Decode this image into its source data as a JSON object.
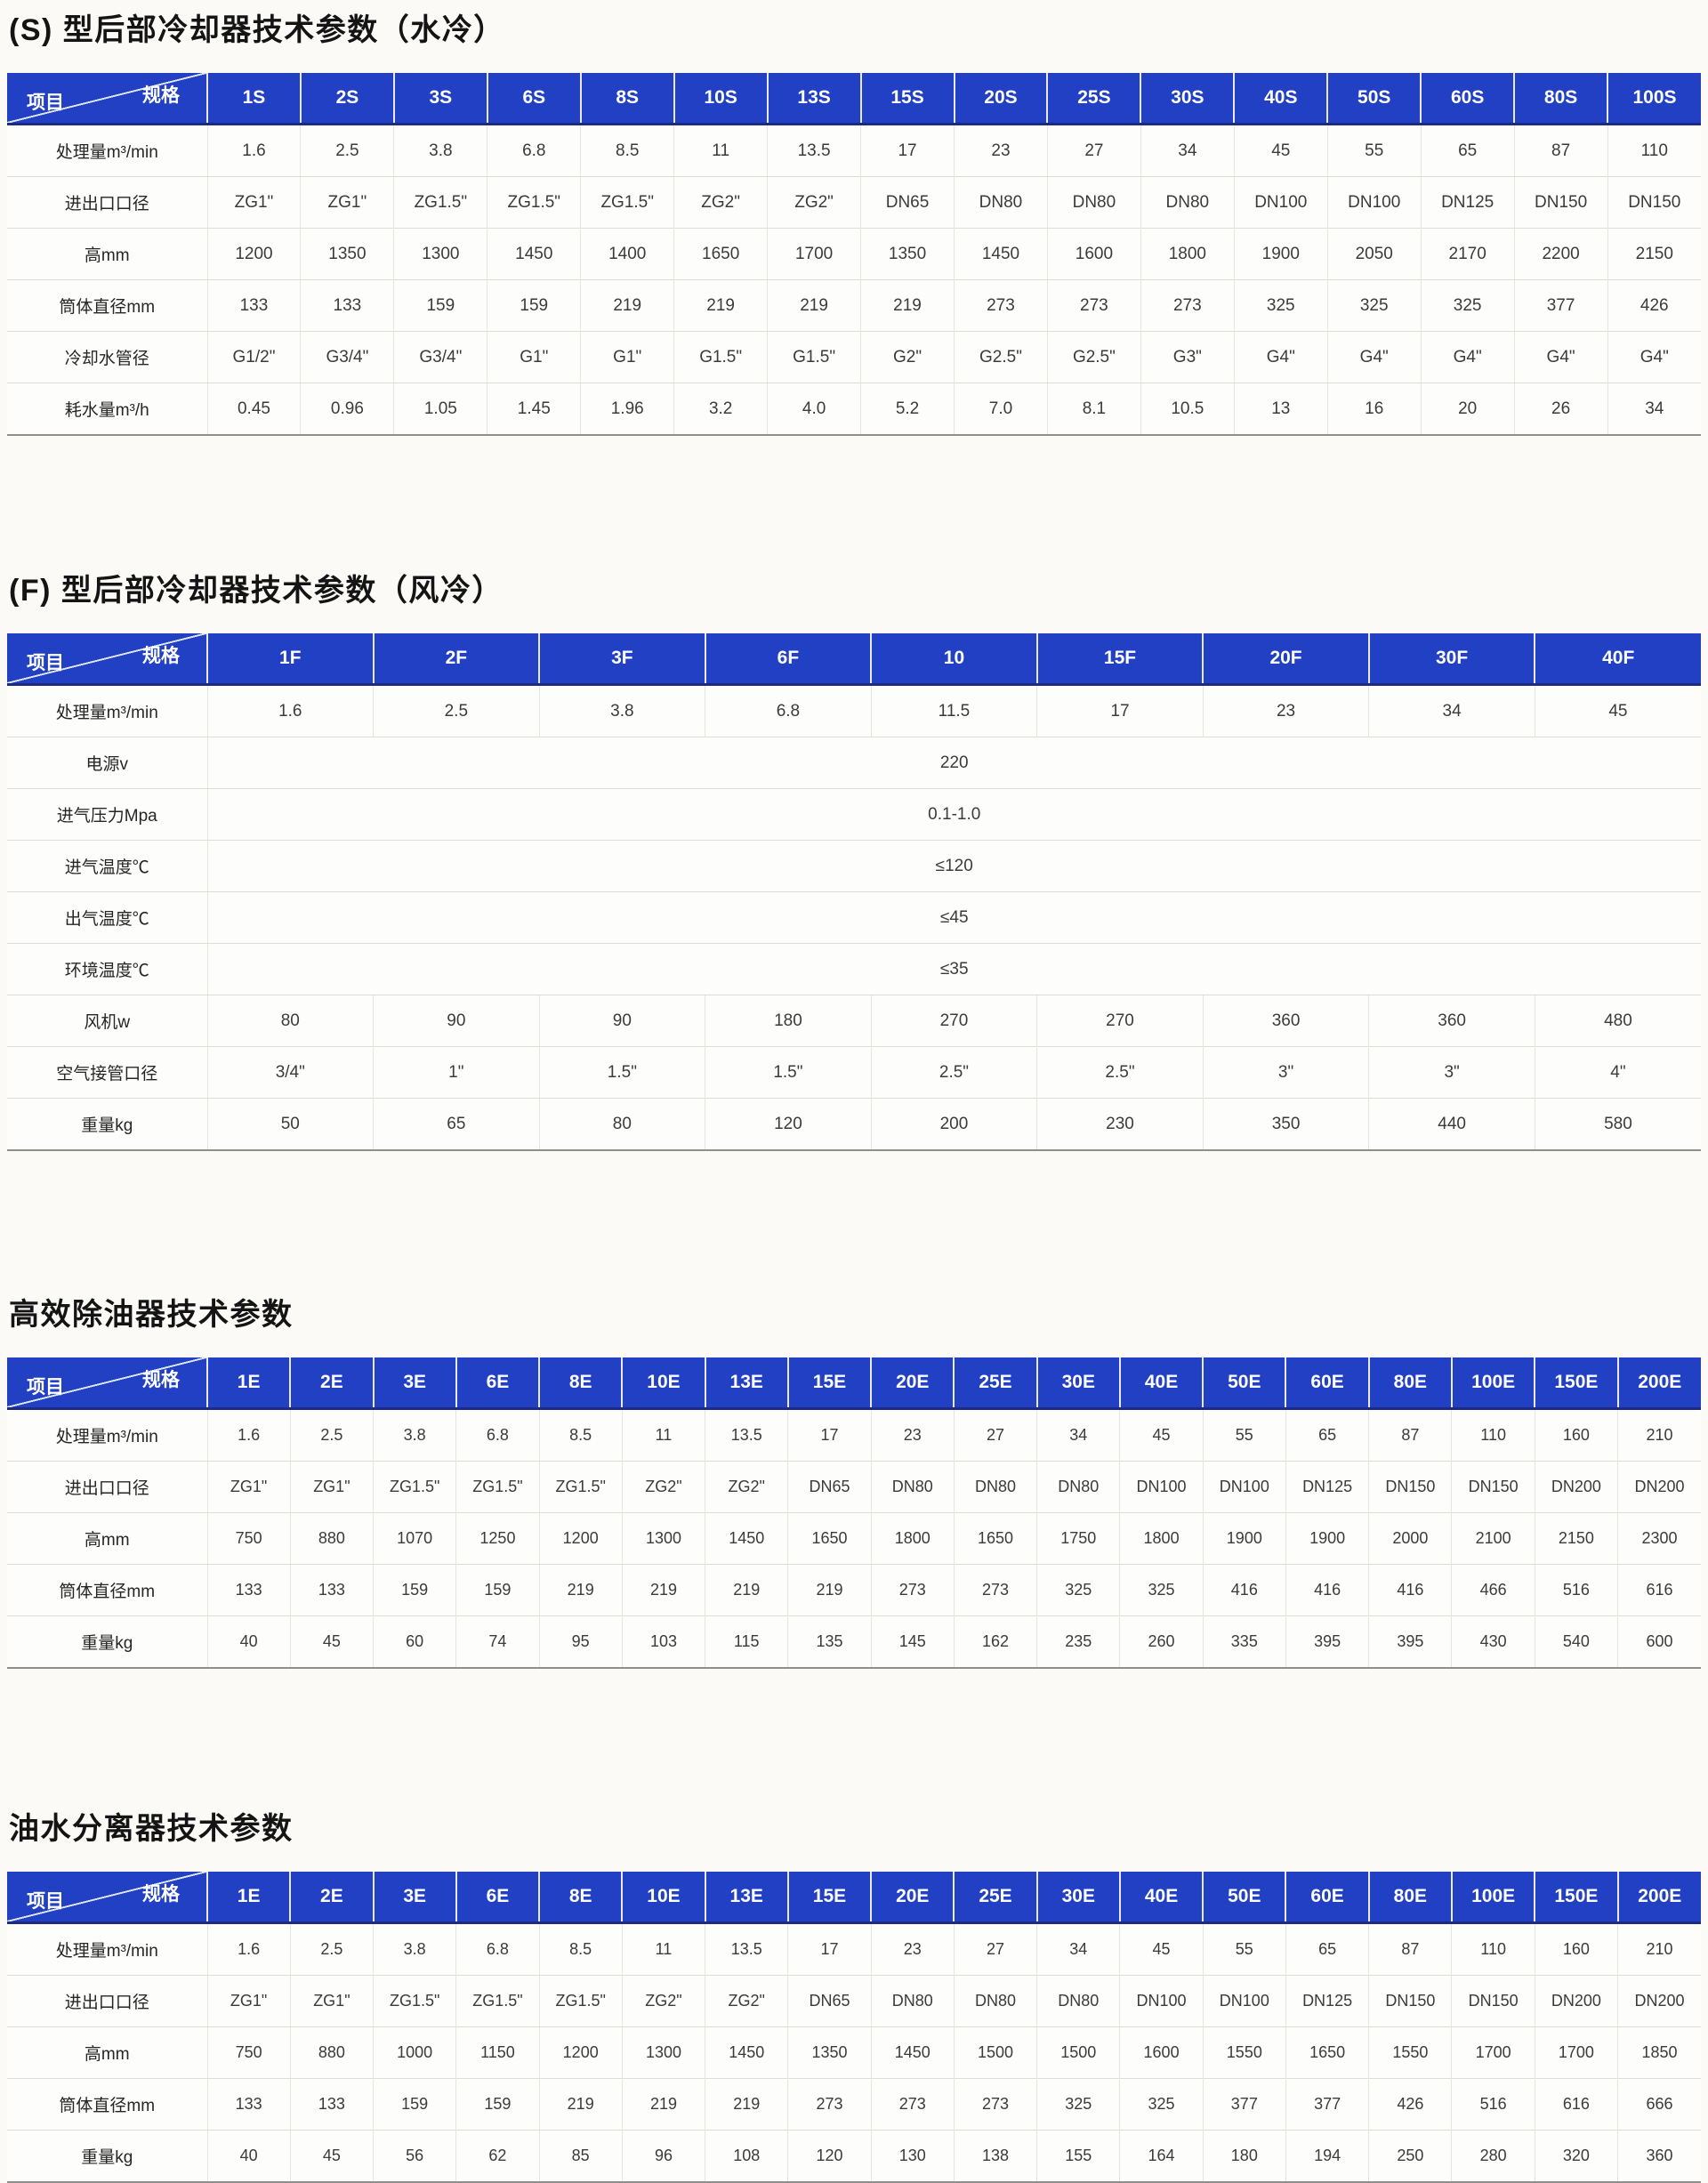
{
  "tables": [
    {
      "id": "s-water-cooled",
      "title": "(S) 型后部冷却器技术参数（水冷）",
      "corner": {
        "top": "规格",
        "bottom": "项目"
      },
      "header_bg": "#2140c4",
      "header_text_color": "#ffffff",
      "columns": [
        "1S",
        "2S",
        "3S",
        "6S",
        "8S",
        "10S",
        "13S",
        "15S",
        "20S",
        "25S",
        "30S",
        "40S",
        "50S",
        "60S",
        "80S",
        "100S"
      ],
      "rows": [
        {
          "label": "处理量m³/min",
          "values": [
            "1.6",
            "2.5",
            "3.8",
            "6.8",
            "8.5",
            "11",
            "13.5",
            "17",
            "23",
            "27",
            "34",
            "45",
            "55",
            "65",
            "87",
            "110"
          ]
        },
        {
          "label": "进出口口径",
          "values": [
            "ZG1\"",
            "ZG1\"",
            "ZG1.5\"",
            "ZG1.5\"",
            "ZG1.5\"",
            "ZG2\"",
            "ZG2\"",
            "DN65",
            "DN80",
            "DN80",
            "DN80",
            "DN100",
            "DN100",
            "DN125",
            "DN150",
            "DN150"
          ]
        },
        {
          "label": "高mm",
          "values": [
            "1200",
            "1350",
            "1300",
            "1450",
            "1400",
            "1650",
            "1700",
            "1350",
            "1450",
            "1600",
            "1800",
            "1900",
            "2050",
            "2170",
            "2200",
            "2150"
          ]
        },
        {
          "label": "筒体直径mm",
          "values": [
            "133",
            "133",
            "159",
            "159",
            "219",
            "219",
            "219",
            "219",
            "273",
            "273",
            "273",
            "325",
            "325",
            "325",
            "377",
            "426"
          ]
        },
        {
          "label": "冷却水管径",
          "values": [
            "G1/2\"",
            "G3/4\"",
            "G3/4\"",
            "G1\"",
            "G1\"",
            "G1.5\"",
            "G1.5\"",
            "G2\"",
            "G2.5\"",
            "G2.5\"",
            "G3\"",
            "G4\"",
            "G4\"",
            "G4\"",
            "G4\"",
            "G4\""
          ]
        },
        {
          "label": "耗水量m³/h",
          "values": [
            "0.45",
            "0.96",
            "1.05",
            "1.45",
            "1.96",
            "3.2",
            "4.0",
            "5.2",
            "7.0",
            "8.1",
            "10.5",
            "13",
            "16",
            "20",
            "26",
            "34"
          ]
        }
      ]
    },
    {
      "id": "f-air-cooled",
      "title": "(F) 型后部冷却器技术参数（风冷）",
      "corner": {
        "top": "规格",
        "bottom": "项目"
      },
      "header_bg": "#2140c4",
      "header_text_color": "#ffffff",
      "columns": [
        "1F",
        "2F",
        "3F",
        "6F",
        "10",
        "15F",
        "20F",
        "30F",
        "40F"
      ],
      "rows": [
        {
          "label": "处理量m³/min",
          "values": [
            "1.6",
            "2.5",
            "3.8",
            "6.8",
            "11.5",
            "17",
            "23",
            "34",
            "45"
          ]
        },
        {
          "label": "电源v",
          "merged": true,
          "value": "220"
        },
        {
          "label": "进气压力Mpa",
          "merged": true,
          "value": "0.1-1.0"
        },
        {
          "label": "进气温度℃",
          "merged": true,
          "value": "≤120"
        },
        {
          "label": "出气温度℃",
          "merged": true,
          "value": "≤45"
        },
        {
          "label": "环境温度℃",
          "merged": true,
          "value": "≤35"
        },
        {
          "label": "风机w",
          "values": [
            "80",
            "90",
            "90",
            "180",
            "270",
            "270",
            "360",
            "360",
            "480"
          ]
        },
        {
          "label": "空气接管口径",
          "values": [
            "3/4\"",
            "1\"",
            "1.5\"",
            "1.5\"",
            "2.5\"",
            "2.5\"",
            "3\"",
            "3\"",
            "4\""
          ]
        },
        {
          "label": "重量kg",
          "values": [
            "50",
            "65",
            "80",
            "120",
            "200",
            "230",
            "350",
            "440",
            "580"
          ]
        }
      ]
    },
    {
      "id": "oil-remover",
      "title": "高效除油器技术参数",
      "corner": {
        "top": "规格",
        "bottom": "项目"
      },
      "header_bg": "#2140c4",
      "header_text_color": "#ffffff",
      "columns": [
        "1E",
        "2E",
        "3E",
        "6E",
        "8E",
        "10E",
        "13E",
        "15E",
        "20E",
        "25E",
        "30E",
        "40E",
        "50E",
        "60E",
        "80E",
        "100E",
        "150E",
        "200E"
      ],
      "rows": [
        {
          "label": "处理量m³/min",
          "values": [
            "1.6",
            "2.5",
            "3.8",
            "6.8",
            "8.5",
            "11",
            "13.5",
            "17",
            "23",
            "27",
            "34",
            "45",
            "55",
            "65",
            "87",
            "110",
            "160",
            "210"
          ]
        },
        {
          "label": "进出口口径",
          "values": [
            "ZG1\"",
            "ZG1\"",
            "ZG1.5\"",
            "ZG1.5\"",
            "ZG1.5\"",
            "ZG2\"",
            "ZG2\"",
            "DN65",
            "DN80",
            "DN80",
            "DN80",
            "DN100",
            "DN100",
            "DN125",
            "DN150",
            "DN150",
            "DN200",
            "DN200"
          ]
        },
        {
          "label": "高mm",
          "values": [
            "750",
            "880",
            "1070",
            "1250",
            "1200",
            "1300",
            "1450",
            "1650",
            "1800",
            "1650",
            "1750",
            "1800",
            "1900",
            "1900",
            "2000",
            "2100",
            "2150",
            "2300"
          ]
        },
        {
          "label": "筒体直径mm",
          "values": [
            "133",
            "133",
            "159",
            "159",
            "219",
            "219",
            "219",
            "219",
            "273",
            "273",
            "325",
            "325",
            "416",
            "416",
            "416",
            "466",
            "516",
            "616"
          ]
        },
        {
          "label": "重量kg",
          "values": [
            "40",
            "45",
            "60",
            "74",
            "95",
            "103",
            "115",
            "135",
            "145",
            "162",
            "235",
            "260",
            "335",
            "395",
            "395",
            "430",
            "540",
            "600"
          ]
        }
      ]
    },
    {
      "id": "oil-water-separator",
      "title": "油水分离器技术参数",
      "corner": {
        "top": "规格",
        "bottom": "项目"
      },
      "header_bg": "#2140c4",
      "header_text_color": "#ffffff",
      "columns": [
        "1E",
        "2E",
        "3E",
        "6E",
        "8E",
        "10E",
        "13E",
        "15E",
        "20E",
        "25E",
        "30E",
        "40E",
        "50E",
        "60E",
        "80E",
        "100E",
        "150E",
        "200E"
      ],
      "rows": [
        {
          "label": "处理量m³/min",
          "values": [
            "1.6",
            "2.5",
            "3.8",
            "6.8",
            "8.5",
            "11",
            "13.5",
            "17",
            "23",
            "27",
            "34",
            "45",
            "55",
            "65",
            "87",
            "110",
            "160",
            "210"
          ]
        },
        {
          "label": "进出口口径",
          "values": [
            "ZG1\"",
            "ZG1\"",
            "ZG1.5\"",
            "ZG1.5\"",
            "ZG1.5\"",
            "ZG2\"",
            "ZG2\"",
            "DN65",
            "DN80",
            "DN80",
            "DN80",
            "DN100",
            "DN100",
            "DN125",
            "DN150",
            "DN150",
            "DN200",
            "DN200"
          ]
        },
        {
          "label": "高mm",
          "values": [
            "750",
            "880",
            "1000",
            "1150",
            "1200",
            "1300",
            "1450",
            "1350",
            "1450",
            "1500",
            "1500",
            "1600",
            "1550",
            "1650",
            "1550",
            "1700",
            "1700",
            "1850"
          ]
        },
        {
          "label": "筒体直径mm",
          "values": [
            "133",
            "133",
            "159",
            "159",
            "219",
            "219",
            "219",
            "273",
            "273",
            "273",
            "325",
            "325",
            "377",
            "377",
            "426",
            "516",
            "616",
            "666"
          ]
        },
        {
          "label": "重量kg",
          "values": [
            "40",
            "45",
            "56",
            "62",
            "85",
            "96",
            "108",
            "120",
            "130",
            "138",
            "155",
            "164",
            "180",
            "194",
            "250",
            "280",
            "320",
            "360"
          ]
        }
      ]
    }
  ]
}
